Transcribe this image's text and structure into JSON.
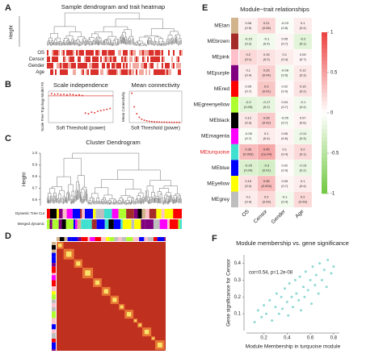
{
  "chart_data": [
    {
      "type": "dendrogram",
      "panel": "A",
      "title": "Sample dendrogram and trait heatmap",
      "ylabel": "Height",
      "rows": [
        "OS",
        "Censor",
        "Gender",
        "Age"
      ]
    },
    {
      "type": "scatter",
      "panel": "B",
      "title": "Scale independence",
      "xlabel": "Soft Threshold (power)",
      "ylabel": "Scale Free Topology Model Fit",
      "color": "#e0403a",
      "x": [
        1,
        2,
        3,
        4,
        5,
        6,
        7,
        8,
        9,
        10,
        11,
        12,
        13,
        14,
        15,
        16,
        17,
        18,
        19,
        20
      ],
      "values": [
        0.92,
        0.9,
        0.91,
        0.89,
        0.9,
        0.88,
        0.9,
        0.89,
        0.87,
        0.88,
        0.86,
        0.3,
        0.28,
        0.33,
        0.31,
        0.36,
        0.38,
        0.4,
        0.42,
        0.45
      ],
      "threshold": 0.85,
      "xlim": [
        0,
        21
      ],
      "ylim": [
        0,
        1
      ]
    },
    {
      "type": "scatter",
      "title": "Mean connectivity",
      "xlabel": "Soft Threshold (power)",
      "ylabel": "Mean Connectivity",
      "color": "#e0403a",
      "x": [
        1,
        2,
        3,
        4,
        5,
        6,
        7,
        8,
        9,
        10,
        11,
        12,
        13,
        14,
        15,
        16,
        17,
        18,
        19,
        20
      ],
      "values": [
        280,
        150,
        85,
        50,
        32,
        22,
        16,
        12,
        9,
        7,
        6,
        5,
        4,
        3.5,
        3,
        2.6,
        2.3,
        2,
        1.8,
        1.6
      ],
      "xlim": [
        0,
        21
      ],
      "ylim": [
        0,
        300
      ]
    },
    {
      "type": "dendrogram",
      "panel": "C",
      "title": "Cluster Dendrogram",
      "ylabel": "Height",
      "ylim": [
        0.55,
        1.0
      ],
      "yticks": [
        0.6,
        0.7,
        0.8,
        0.9,
        {
          "value": 1,
          "label": "1.0"
        }
      ],
      "rows": [
        "Dynamic Tree Cut",
        "Merged dynamic"
      ]
    },
    {
      "type": "heatmap",
      "panel": "D"
    },
    {
      "type": "heatmap",
      "panel": "E",
      "title": "Module−trait relationships",
      "modules": [
        "MEtan",
        "MEbrown",
        "MEpink",
        "MEpurple",
        "MEred",
        "MEgreenyellow",
        "MEblack",
        "MEmagenta",
        "MEturquoise",
        "MEblue",
        "MEyellow",
        "MEgrey"
      ],
      "colors": [
        "#d2b48c",
        "#a52a2a",
        "#ffc0cb",
        "#800080",
        "#ff0000",
        "#adff2f",
        "#000000",
        "#ff00ff",
        "#40e0d0",
        "#0000ff",
        "#ffff00",
        "#bebebe"
      ],
      "highlight": 8,
      "traits": [
        "OS",
        "Censor",
        "Gender",
        "Age"
      ],
      "values": [
        [
          0.08,
          0.21,
          -0.03,
          0.1
        ],
        [
          -0.15,
          -0.1,
          0.05,
          -0.2
        ],
        [
          0.2,
          0.15,
          0.1,
          0.05
        ],
        [
          0.1,
          0.25,
          -0.08,
          0.12
        ],
        [
          0.05,
          0.3,
          0.02,
          0.15
        ],
        [
          -0.2,
          -0.17,
          0.04,
          -0.1
        ],
        [
          0.12,
          0.28,
          -0.05,
          0.07
        ],
        [
          -0.05,
          0.1,
          0.06,
          -0.12
        ],
        [
          0.35,
          0.45,
          0.1,
          0.2
        ],
        [
          -0.25,
          -0.3,
          0.02,
          -0.15
        ],
        [
          0.15,
          0.35,
          0.05,
          0.1
        ],
        [
          0.1,
          0.2,
          -0.1,
          0.2
        ]
      ],
      "pvalues": [
        [
          0.5,
          0.08,
          0.8,
          0.4
        ],
        [
          0.2,
          0.4,
          0.7,
          0.1
        ],
        [
          0.1,
          0.2,
          0.4,
          0.7
        ],
        [
          0.4,
          0.04,
          0.5,
          0.3
        ],
        [
          0.7,
          0.01,
          0.9,
          0.2
        ],
        [
          0.09,
          0.2,
          0.7,
          0.4
        ],
        [
          0.3,
          0.02,
          0.7,
          0.6
        ],
        [
          0.7,
          0.4,
          0.6,
          0.3
        ],
        [
          0.003,
          0.0001,
          0.4,
          0.1
        ],
        [
          0.04,
          0.01,
          0.9,
          0.2
        ],
        [
          0.2,
          0.003,
          0.7,
          0.4
        ],
        [
          0.4,
          0.09,
          0.4,
          0.09
        ]
      ],
      "pvalue_labels": [
        [
          "(0.5)",
          "(0.08)",
          "(0.8)",
          "(0.4)"
        ],
        [
          "(0.2)",
          "(0.4)",
          "(0.7)",
          "(0.1)"
        ],
        [
          "(0.1)",
          "(0.2)",
          "(0.4)",
          "(0.7)"
        ],
        [
          "(0.4)",
          "(0.04)",
          "(0.5)",
          "(0.3)"
        ],
        [
          "(0.7)",
          "(0.01)",
          "(0.9)",
          "(0.2)"
        ],
        [
          "(0.09)",
          "(0.2)",
          "(0.7)",
          "(0.4)"
        ],
        [
          "(0.3)",
          "(0.02)",
          "(0.7)",
          "(0.6)"
        ],
        [
          "(0.7)",
          "(0.4)",
          "(0.6)",
          "(0.3)"
        ],
        [
          "(0.003)",
          "(1e-04)",
          "(0.4)",
          "(0.1)"
        ],
        [
          "(0.04)",
          "(0.01)",
          "(0.9)",
          "(0.2)"
        ],
        [
          "(0.2)",
          "(0.003)",
          "(0.7)",
          "(0.4)"
        ],
        [
          "(0.4)",
          "(0.09)",
          "(0.4)",
          "(0.09)"
        ]
      ],
      "clim": [
        -1,
        1
      ],
      "cticks": [
        -1,
        -0.5,
        0,
        0.5,
        1
      ]
    },
    {
      "type": "scatter",
      "panel": "F",
      "title": "Module membership vs. gene significance",
      "xlabel": "Module Membership in turquoise module",
      "ylabel": "Gene significance for Censor",
      "annotation": "cor=0.54, p=1.2e-08",
      "color": "#8fd9d3",
      "x": [
        0.12,
        0.15,
        0.18,
        0.2,
        0.22,
        0.25,
        0.27,
        0.3,
        0.31,
        0.33,
        0.35,
        0.36,
        0.38,
        0.4,
        0.41,
        0.42,
        0.44,
        0.45,
        0.47,
        0.48,
        0.5,
        0.51,
        0.52,
        0.54,
        0.55,
        0.56,
        0.58,
        0.6,
        0.61,
        0.62,
        0.64,
        0.65,
        0.67,
        0.68,
        0.7,
        0.72,
        0.74,
        0.75,
        0.78,
        0.8
      ],
      "values": [
        0.05,
        0.12,
        0.08,
        0.15,
        0.1,
        0.18,
        0.06,
        0.14,
        0.22,
        0.1,
        0.2,
        0.13,
        0.25,
        0.17,
        0.09,
        0.28,
        0.2,
        0.14,
        0.3,
        0.22,
        0.18,
        0.32,
        0.12,
        0.26,
        0.2,
        0.35,
        0.24,
        0.3,
        0.16,
        0.38,
        0.27,
        0.33,
        0.22,
        0.4,
        0.3,
        0.36,
        0.26,
        0.42,
        0.34,
        0.38
      ],
      "xlim": [
        0.05,
        0.85
      ],
      "ylim": [
        0,
        0.45
      ],
      "xticks": [
        0.2,
        0.4,
        0.6,
        0.8
      ],
      "yticks": [
        0.1,
        0.2,
        0.3,
        0.4
      ]
    }
  ]
}
